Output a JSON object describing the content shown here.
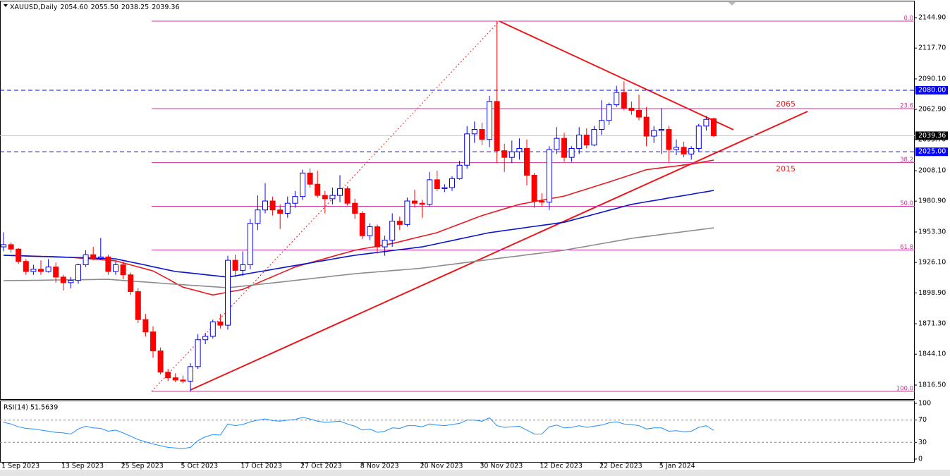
{
  "chart_data": [
    {
      "type": "candlestick",
      "title": "XAUUSD,Daily",
      "header_values": [
        "2054.60",
        "2055.50",
        "2038.25",
        "2039.36"
      ],
      "categories": [
        "1 Sep 2023",
        null,
        null,
        null,
        null,
        null,
        null,
        null,
        "13 Sep 2023",
        null,
        null,
        null,
        null,
        null,
        null,
        null,
        "25 Sep 2023",
        null,
        null,
        null,
        null,
        null,
        null,
        null,
        "5 Oct 2023",
        null,
        null,
        null,
        null,
        null,
        null,
        null,
        "17 Oct 2023",
        null,
        null,
        null,
        null,
        null,
        null,
        null,
        "27 Oct 2023",
        null,
        null,
        null,
        null,
        null,
        null,
        null,
        "8 Nov 2023",
        null,
        null,
        null,
        null,
        null,
        null,
        null,
        "20 Nov 2023",
        null,
        null,
        null,
        null,
        null,
        null,
        null,
        "30 Nov 2023",
        null,
        null,
        null,
        null,
        null,
        null,
        null,
        "12 Dec 2023",
        null,
        null,
        null,
        null,
        null,
        null,
        null,
        "22 Dec 2023",
        null,
        null,
        null,
        null,
        null,
        null,
        null,
        "5 Jan 2024",
        null,
        null,
        null,
        null,
        null,
        null,
        null
      ],
      "open": [
        1940,
        1942,
        1938,
        1927,
        1918,
        1920,
        1918,
        1922,
        1913,
        1908,
        1910,
        1924,
        1933,
        1930,
        1931,
        1918,
        1924,
        1915,
        1900,
        1875,
        1864,
        1847,
        1828,
        1823,
        1821,
        1820,
        1833,
        1857,
        1860,
        1873,
        1870,
        1928,
        1919,
        1924,
        1961,
        1973,
        1981,
        1973,
        1970,
        1979,
        1985,
        2006,
        1996,
        1986,
        1983,
        1986,
        1992,
        1979,
        1970,
        1950,
        1958,
        1940,
        1946,
        1963,
        1960,
        1981,
        1979,
        1978,
        2000,
        1992,
        1993,
        2001,
        2013,
        2041,
        2045,
        2036,
        2070,
        2026,
        2020,
        2025,
        2028,
        2004,
        1981,
        1980,
        2027,
        2037,
        2020,
        2028,
        2040,
        2031,
        2045,
        2053,
        2067,
        2078,
        2064,
        2062,
        2056,
        2039,
        2044,
        2045,
        2027,
        2029,
        2023,
        2028,
        2048,
        2054.6
      ],
      "high": [
        1953,
        1944,
        1939,
        1929,
        1924,
        1928,
        1929,
        1926,
        1915,
        1913,
        1925,
        1937,
        1940,
        1948,
        1933,
        1927,
        1927,
        1917,
        1903,
        1880,
        1869,
        1850,
        1831,
        1827,
        1825,
        1836,
        1862,
        1863,
        1875,
        1880,
        1932,
        1933,
        1936,
        1965,
        1986,
        1997,
        1985,
        1978,
        1985,
        1990,
        2009,
        2010,
        2008,
        1990,
        1993,
        2004,
        1994,
        1983,
        1972,
        1961,
        1960,
        1950,
        1970,
        1967,
        1984,
        1991,
        1982,
        2007,
        2008,
        1996,
        2003,
        2017,
        2048,
        2052,
        2051,
        2075,
        2141.75,
        2032,
        2035,
        2037,
        2036,
        2006,
        1988,
        2030,
        2047,
        2042,
        2030,
        2047,
        2046,
        2048,
        2071,
        2069,
        2084,
        2088,
        2070,
        2076,
        2065,
        2048,
        2064,
        2048,
        2036,
        2034,
        2030,
        2050,
        2057,
        2055.5
      ],
      "low": [
        1936,
        1935,
        1925,
        1915,
        1915,
        1915,
        1917,
        1908,
        1901,
        1903,
        1907,
        1922,
        1928,
        1928,
        1915,
        1915,
        1911,
        1897,
        1872,
        1860,
        1841,
        1826,
        1820,
        1819,
        1818,
        1810.8,
        1831,
        1853,
        1858,
        1867,
        1866,
        1913,
        1914,
        1920,
        1955,
        1970,
        1968,
        1956,
        1966,
        1975,
        1982,
        1993,
        1984,
        1970,
        1978,
        1980,
        1977,
        1965,
        1947,
        1946,
        1934,
        1932,
        1940,
        1955,
        1958,
        1975,
        1966,
        1976,
        1990,
        1989,
        1990,
        2000,
        2010,
        2033,
        2031,
        2029,
        2015,
        2007,
        2015,
        2018,
        1995,
        1975,
        1976,
        1973,
        2023,
        2016,
        2016,
        2023,
        2028,
        2030,
        2040,
        2049,
        2065,
        2062,
        2058,
        2053,
        2030,
        2033,
        2023,
        2016,
        2022,
        2020,
        2018,
        2025,
        2044,
        2038.25
      ],
      "close": [
        1942,
        1938,
        1927,
        1918,
        1920,
        1918,
        1922,
        1913,
        1908,
        1910,
        1924,
        1933,
        1930,
        1931,
        1918,
        1924,
        1915,
        1900,
        1875,
        1864,
        1847,
        1828,
        1823,
        1821,
        1820,
        1833,
        1857,
        1860,
        1873,
        1870,
        1928,
        1919,
        1924,
        1961,
        1973,
        1981,
        1973,
        1970,
        1979,
        1985,
        2006,
        1996,
        1986,
        1983,
        1986,
        1992,
        1979,
        1970,
        1950,
        1958,
        1940,
        1946,
        1963,
        1960,
        1981,
        1979,
        1978,
        2000,
        1992,
        1993,
        2001,
        2013,
        2041,
        2045,
        2036,
        2070,
        2026,
        2020,
        2025,
        2028,
        2004,
        1981,
        1980,
        2027,
        2037,
        2020,
        2028,
        2040,
        2031,
        2045,
        2053,
        2067,
        2078,
        2064,
        2062,
        2056,
        2039,
        2044,
        2045,
        2027,
        2029,
        2023,
        2028,
        2048,
        2054,
        2039.36
      ],
      "up_color": "#0000ff",
      "down_color": "#ff0000",
      "moving_averages": [
        {
          "color": "#e8191c",
          "values": [
            1932.5,
            1932.3,
            1932.1,
            1931.9,
            1931.7,
            1931.5,
            1931.4,
            1931.2,
            1930.9,
            1930.6,
            1930.1,
            1929.6,
            1929.1,
            1928.6,
            1928.0,
            1927.5,
            1925.7,
            1923.9,
            1922.1,
            1920.3,
            1918.5,
            1914.9,
            1911.3,
            1907.6,
            1904,
            1902.2,
            1900.5,
            1898.7,
            1897,
            1898.2,
            1899.5,
            1900.7,
            1902,
            1904.9,
            1907.7,
            1910.6,
            1913.4,
            1916.3,
            1919.1,
            1922,
            1923.9,
            1925.8,
            1927.6,
            1929.5,
            1931.4,
            1933.3,
            1935.1,
            1937,
            1938.2,
            1939.4,
            1940.6,
            1941.8,
            1943,
            1944.6,
            1946.2,
            1947.9,
            1949.5,
            1951.1,
            1952.7,
            1955.3,
            1957.8,
            1960.4,
            1962.9,
            1965.5,
            1968,
            1970,
            1972,
            1974,
            1976,
            1978,
            1979.2,
            1980.5,
            1981.7,
            1982.9,
            1984.2,
            1985.4,
            1987.5,
            1989.6,
            1991.7,
            1993.8,
            1995.9,
            1998,
            2000.2,
            2002.4,
            2004.6,
            2006.8,
            2009,
            2009.8,
            2010.7,
            2011.5,
            2012.3,
            2013.2,
            2014,
            2015.2,
            2016.4,
            2017.6
          ]
        },
        {
          "color": "#0a14c8",
          "values": [
            1932.5,
            1932.3,
            1932.1,
            1931.9,
            1931.6,
            1931.4,
            1931.2,
            1931.0,
            1930.8,
            1930.6,
            1930.4,
            1930.2,
            1930.0,
            1929.7,
            1929.5,
            1929.3,
            1927.9,
            1926.5,
            1925.1,
            1923.7,
            1922.2,
            1920.8,
            1919.4,
            1918,
            1917.3,
            1916.6,
            1915.9,
            1915.1,
            1914.4,
            1913.7,
            1913,
            1914.1,
            1915.3,
            1916.4,
            1917.6,
            1918.7,
            1919.9,
            1921,
            1922.2,
            1923.3,
            1924.5,
            1925.6,
            1926.8,
            1927.9,
            1929.1,
            1930.2,
            1931.4,
            1932.5,
            1933.3,
            1934.2,
            1935,
            1935.8,
            1936.7,
            1937.5,
            1938.3,
            1939.2,
            1940,
            1941.4,
            1942.8,
            1944.2,
            1945.6,
            1947.1,
            1948.5,
            1949.9,
            1951.3,
            1952.7,
            1953.6,
            1954.6,
            1955.5,
            1956.4,
            1957.4,
            1958.3,
            1959.2,
            1960.1,
            1961.1,
            1962,
            1963.8,
            1965.6,
            1967.3,
            1969.1,
            1970.9,
            1972.7,
            1974.4,
            1976.2,
            1978,
            1979.1,
            1980.3,
            1981.4,
            1982.5,
            1983.7,
            1984.8,
            1985.9,
            1987.0,
            1988.2,
            1989.3,
            1990.5
          ]
        },
        {
          "color": "#8c8c8c",
          "values": [
            1909.8,
            1909.9,
            1910,
            1910,
            1910.1,
            1910.2,
            1910.3,
            1910.4,
            1910.5,
            1910.6,
            1910.6,
            1910.7,
            1910.8,
            1910.9,
            1911,
            1910.5,
            1910,
            1909.5,
            1909,
            1908.6,
            1908.1,
            1907.6,
            1907.1,
            1906.6,
            1906.2,
            1905.7,
            1905.3,
            1904.8,
            1904.4,
            1903.9,
            1903.5,
            1904.2,
            1904.9,
            1905.6,
            1906.4,
            1907.1,
            1907.8,
            1908.5,
            1909.3,
            1910,
            1910.8,
            1911.5,
            1912.3,
            1913,
            1913.8,
            1914.5,
            1915.3,
            1916,
            1916.6,
            1917.1,
            1917.7,
            1918.2,
            1918.8,
            1919.3,
            1919.9,
            1920.4,
            1921,
            1921.9,
            1922.7,
            1923.6,
            1924.4,
            1925.3,
            1926.1,
            1927,
            1927.8,
            1928.7,
            1929.5,
            1930.4,
            1931.2,
            1932,
            1932.9,
            1933.7,
            1934.5,
            1935.3,
            1936.2,
            1937,
            1938.2,
            1939.4,
            1940.5,
            1941.7,
            1942.9,
            1944.1,
            1945.2,
            1946.4,
            1947.6,
            1948.5,
            1949.3,
            1950.2,
            1951,
            1951.9,
            1952.7,
            1953.6,
            1954.4,
            1955.3,
            1956.1,
            1957
          ]
        }
      ],
      "fib_color": "#cc3399",
      "fib_levels": [
        {
          "label": "0.0",
          "value": 2141.75
        },
        {
          "label": "23.6",
          "value": 2063.6
        },
        {
          "label": "38.2",
          "value": 2015.3
        },
        {
          "label": "50.0",
          "value": 1976.3
        },
        {
          "label": "61.8",
          "value": 1937.2
        },
        {
          "label": "100.0",
          "value": 1810.8
        }
      ],
      "hlines": [
        {
          "value": 2080,
          "label": "2080.00",
          "color": "#0000ff"
        },
        {
          "value": 2025,
          "label": "2025.00",
          "color": "#0000ff"
        }
      ],
      "current_price": {
        "value": 2039.36,
        "label": "2039.36"
      },
      "annotations": [
        2065,
        2015
      ],
      "annotation_color": "#e8191c",
      "ylim": [
        1803.9,
        2160.66
      ],
      "yticks": [
        {
          "value": 2144.9,
          "label": "2144.90"
        },
        {
          "value": 2117.7,
          "label": "2117.70"
        },
        {
          "value": 2090.1,
          "label": "2090.10"
        },
        {
          "value": 2062.9,
          "label": "2062.90"
        },
        {
          "value": 2035.7,
          "label": "2035.70"
        },
        {
          "value": 2008.1,
          "label": "2008.10"
        },
        {
          "value": 1980.9,
          "label": "1980.90"
        },
        {
          "value": 1953.3,
          "label": "1953.30"
        },
        {
          "value": 1926.1,
          "label": "1926.10"
        },
        {
          "value": 1898.9,
          "label": "1898.90"
        },
        {
          "value": 1871.3,
          "label": "1871.30"
        },
        {
          "value": 1844.1,
          "label": "1844.10"
        },
        {
          "value": 1816.5,
          "label": "1816.50"
        }
      ]
    },
    {
      "type": "line",
      "title": "RSI(14) 51.5639",
      "color": "#1e90ff",
      "ylim": [
        0,
        100
      ],
      "yticks": [
        100,
        70,
        30,
        0
      ],
      "level_lines": [
        70,
        30
      ],
      "values": [
        66,
        63,
        58,
        55,
        54,
        52,
        50,
        48,
        47,
        45,
        54,
        59,
        56,
        55,
        50,
        52,
        47,
        41,
        35,
        31,
        27,
        24,
        21,
        20,
        19,
        21,
        33,
        40,
        44,
        43,
        63,
        60,
        62,
        67,
        70,
        72,
        69,
        68,
        70,
        71,
        75,
        72,
        68,
        66,
        67,
        68,
        63,
        59,
        52,
        54,
        48,
        50,
        56,
        55,
        60,
        60,
        58,
        63,
        61,
        60,
        62,
        64,
        70,
        70,
        68,
        74,
        60,
        57,
        58,
        59,
        52,
        45,
        45,
        58,
        61,
        56,
        57,
        60,
        57,
        59,
        61,
        65,
        67,
        63,
        62,
        60,
        54,
        56,
        56,
        50,
        51,
        49,
        50,
        57,
        60,
        51.5639
      ]
    }
  ]
}
